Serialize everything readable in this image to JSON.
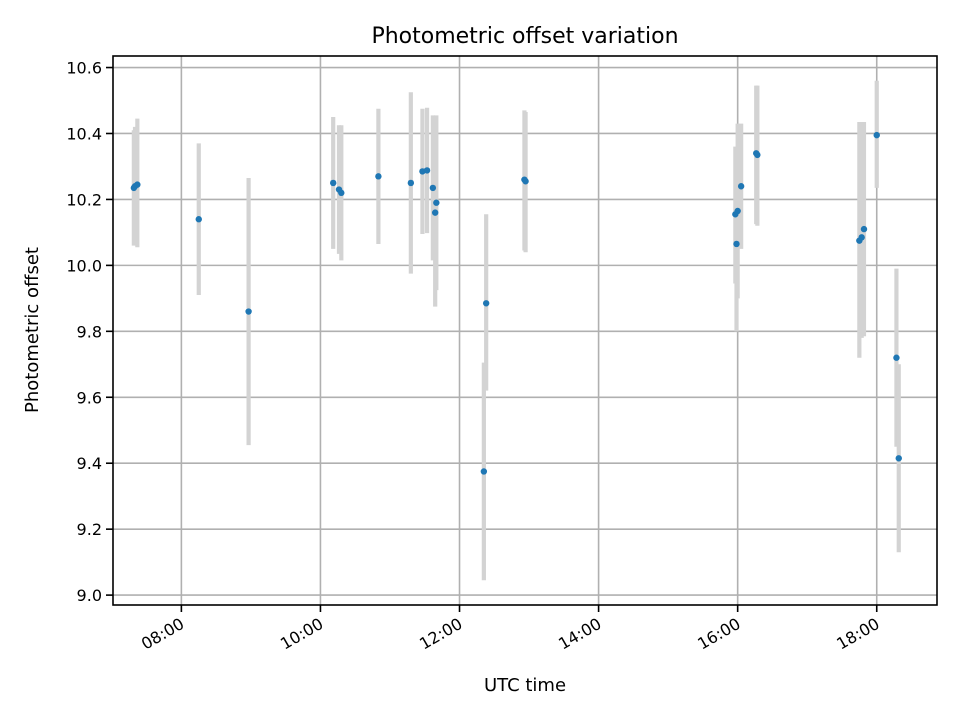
{
  "chart_data": {
    "type": "scatter",
    "title": "Photometric offset variation",
    "xlabel": "UTC time",
    "ylabel": "Photometric offset",
    "xlim": [
      "07:01",
      "18:52"
    ],
    "ylim": [
      8.97,
      10.635
    ],
    "x_ticks": [
      "08:00",
      "10:00",
      "12:00",
      "14:00",
      "16:00",
      "18:00"
    ],
    "y_ticks": [
      "9.0",
      "9.2",
      "9.4",
      "9.6",
      "9.8",
      "10.0",
      "10.2",
      "10.4",
      "10.6"
    ],
    "grid": true,
    "colors": {
      "marker": "#1f77b4",
      "errorbar": "#d3d3d3",
      "grid": "#b0b0b0"
    },
    "points": [
      {
        "t": "07:19",
        "y": 10.235,
        "lo": 10.06,
        "hi": 10.41
      },
      {
        "t": "07:20",
        "y": 10.24,
        "lo": 10.07,
        "hi": 10.42
      },
      {
        "t": "07:22",
        "y": 10.245,
        "lo": 10.055,
        "hi": 10.445
      },
      {
        "t": "08:15",
        "y": 10.14,
        "lo": 9.91,
        "hi": 10.37
      },
      {
        "t": "08:58",
        "y": 9.86,
        "lo": 9.455,
        "hi": 10.265
      },
      {
        "t": "10:11",
        "y": 10.25,
        "lo": 10.05,
        "hi": 10.45
      },
      {
        "t": "10:16",
        "y": 10.23,
        "lo": 10.035,
        "hi": 10.425
      },
      {
        "t": "10:18",
        "y": 10.22,
        "lo": 10.015,
        "hi": 10.425
      },
      {
        "t": "10:50",
        "y": 10.27,
        "lo": 10.065,
        "hi": 10.475
      },
      {
        "t": "11:18",
        "y": 10.25,
        "lo": 9.975,
        "hi": 10.525
      },
      {
        "t": "11:28",
        "y": 10.285,
        "lo": 10.095,
        "hi": 10.475
      },
      {
        "t": "11:32",
        "y": 10.288,
        "lo": 10.098,
        "hi": 10.478
      },
      {
        "t": "11:37",
        "y": 10.235,
        "lo": 10.015,
        "hi": 10.455
      },
      {
        "t": "11:39",
        "y": 10.16,
        "lo": 9.875,
        "hi": 10.445
      },
      {
        "t": "11:40",
        "y": 10.19,
        "lo": 9.925,
        "hi": 10.455
      },
      {
        "t": "12:21",
        "y": 9.375,
        "lo": 9.045,
        "hi": 9.705
      },
      {
        "t": "12:23",
        "y": 9.885,
        "lo": 9.62,
        "hi": 10.155
      },
      {
        "t": "12:56",
        "y": 10.26,
        "lo": 10.045,
        "hi": 10.47
      },
      {
        "t": "12:57",
        "y": 10.255,
        "lo": 10.04,
        "hi": 10.465
      },
      {
        "t": "15:58",
        "y": 10.155,
        "lo": 9.945,
        "hi": 10.36
      },
      {
        "t": "15:59",
        "y": 10.065,
        "lo": 9.8,
        "hi": 10.335
      },
      {
        "t": "16:00",
        "y": 10.165,
        "lo": 9.9,
        "hi": 10.43
      },
      {
        "t": "16:03",
        "y": 10.24,
        "lo": 10.05,
        "hi": 10.43
      },
      {
        "t": "16:16",
        "y": 10.34,
        "lo": 10.125,
        "hi": 10.545
      },
      {
        "t": "16:17",
        "y": 10.335,
        "lo": 10.12,
        "hi": 10.545
      },
      {
        "t": "17:45",
        "y": 10.075,
        "lo": 9.72,
        "hi": 10.435
      },
      {
        "t": "17:47",
        "y": 10.085,
        "lo": 9.78,
        "hi": 10.435
      },
      {
        "t": "17:49",
        "y": 10.11,
        "lo": 9.785,
        "hi": 10.435
      },
      {
        "t": "18:00",
        "y": 10.395,
        "lo": 10.235,
        "hi": 10.56
      },
      {
        "t": "18:17",
        "y": 9.72,
        "lo": 9.45,
        "hi": 9.99
      },
      {
        "t": "18:19",
        "y": 9.415,
        "lo": 9.13,
        "hi": 9.7
      }
    ]
  }
}
